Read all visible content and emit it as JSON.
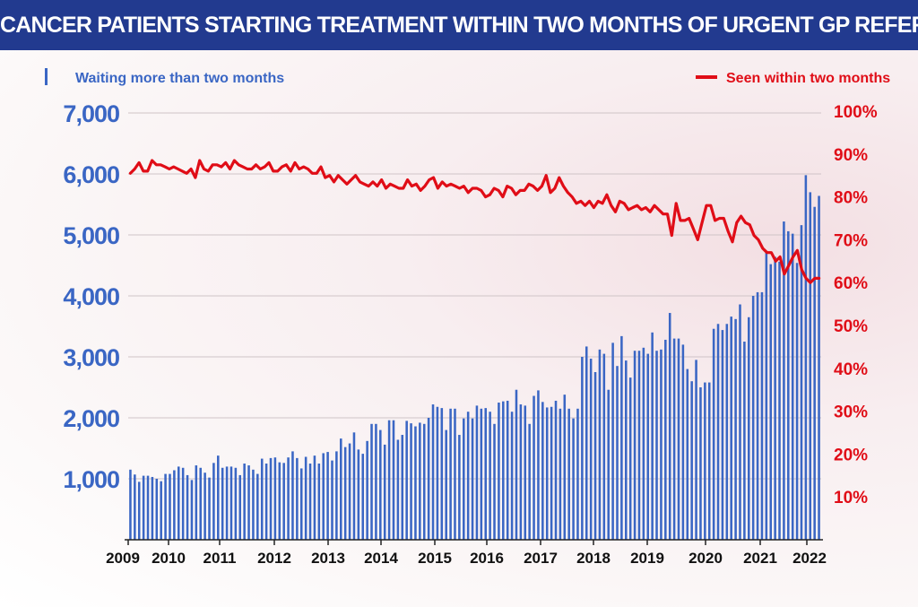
{
  "title": "CANCER PATIENTS STARTING TREATMENT WITHIN TWO MONTHS OF URGENT GP REFERRAL",
  "colors": {
    "title_bg": "#223a8f",
    "bars": "#3a66c4",
    "line": "#e00d17",
    "grid": "#cfc4c7"
  },
  "chart_data": {
    "type": "bar",
    "title": "CANCER PATIENTS STARTING TREATMENT WITHIN TWO MONTHS OF URGENT GP REFERRAL",
    "legend": {
      "bars": "Waiting more than two months",
      "line": "Seen within two months"
    },
    "y_left": {
      "label": "",
      "range": [
        0,
        7000
      ],
      "ticks": [
        "1,000",
        "2,000",
        "3,000",
        "4,000",
        "5,000",
        "6,000",
        "7,000"
      ]
    },
    "y_right": {
      "label": "",
      "range": [
        0,
        100
      ],
      "ticks": [
        "10%",
        "20%",
        "30%",
        "40%",
        "50%",
        "60%",
        "70%",
        "80%",
        "90%",
        "100%"
      ]
    },
    "x_ticks": [
      "2009",
      "2010",
      "2011",
      "2012",
      "2013",
      "2014",
      "2015",
      "2016",
      "2017",
      "2018",
      "2019",
      "2020",
      "2021",
      "2022"
    ],
    "grid": true,
    "series": [
      {
        "name": "Waiting more than two months",
        "type": "bar",
        "axis": "left",
        "values": [
          1150,
          1070,
          950,
          1050,
          1050,
          1030,
          1000,
          960,
          1080,
          1080,
          1140,
          1200,
          1180,
          1060,
          980,
          1220,
          1180,
          1100,
          1020,
          1260,
          1380,
          1180,
          1200,
          1200,
          1180,
          1060,
          1250,
          1220,
          1150,
          1080,
          1330,
          1250,
          1340,
          1350,
          1270,
          1260,
          1350,
          1450,
          1340,
          1170,
          1360,
          1250,
          1380,
          1250,
          1420,
          1440,
          1300,
          1450,
          1660,
          1520,
          1580,
          1760,
          1480,
          1410,
          1620,
          1900,
          1900,
          1800,
          1560,
          1960,
          1960,
          1640,
          1720,
          1950,
          1910,
          1860,
          1920,
          1900,
          2000,
          2220,
          2180,
          2160,
          1800,
          2150,
          2150,
          1720,
          1990,
          2100,
          1990,
          2200,
          2150,
          2160,
          2100,
          1900,
          2250,
          2270,
          2280,
          2100,
          2460,
          2220,
          2200,
          1900,
          2360,
          2450,
          2260,
          2170,
          2180,
          2280,
          2150,
          2380,
          2150,
          1990,
          2150,
          3000,
          3170,
          2970,
          2750,
          3120,
          3050,
          2460,
          3230,
          2850,
          3340,
          2940,
          2660,
          3100,
          3100,
          3150,
          3050,
          3400,
          3100,
          3120,
          3280,
          3720,
          3300,
          3300,
          3200,
          2800,
          2600,
          2950,
          2500,
          2580,
          2580,
          3460,
          3540,
          3440,
          3540,
          3660,
          3620,
          3860,
          3250,
          3650,
          4000,
          4060,
          4060,
          4720,
          4520,
          4640,
          4560,
          5220,
          5060,
          5020,
          4540,
          5160,
          5980,
          5700,
          5460,
          5640
        ]
      },
      {
        "name": "Seen within two months",
        "type": "line",
        "axis": "right",
        "values": [
          85.5,
          86.5,
          88,
          86,
          86,
          88.5,
          87.5,
          87.5,
          87,
          86.5,
          87,
          86.5,
          86,
          85.5,
          86.5,
          84.5,
          88.5,
          86.5,
          86,
          87.5,
          87.5,
          87,
          88,
          86.5,
          88.5,
          87.5,
          87,
          86.5,
          86.5,
          87.5,
          86.5,
          87,
          88,
          86,
          86,
          87,
          87.5,
          86,
          88,
          86.5,
          87,
          86.5,
          85.5,
          85.5,
          87,
          84.5,
          85,
          83.5,
          85,
          84,
          83,
          84,
          85,
          83.5,
          83,
          82.5,
          83.5,
          82.5,
          84,
          82,
          83,
          82.5,
          82,
          82,
          84,
          82.5,
          83,
          81.5,
          82.5,
          84,
          84.5,
          82,
          83.5,
          82.5,
          83,
          82.5,
          82,
          82.5,
          81,
          82,
          82,
          81.5,
          80,
          80.5,
          82,
          81.5,
          80,
          82.5,
          82,
          80.5,
          81.5,
          81.5,
          83,
          82.5,
          81.5,
          82.5,
          85,
          81,
          82,
          84.5,
          82.5,
          81,
          80,
          78.5,
          79,
          78,
          79,
          77.5,
          79,
          78.5,
          80.5,
          78,
          76.5,
          79,
          78.5,
          77,
          77.5,
          78,
          77,
          77.5,
          76.5,
          78,
          77,
          76,
          76,
          71,
          78.5,
          74.5,
          74.5,
          75,
          72.5,
          70,
          74,
          78,
          78,
          74.5,
          75,
          75,
          72,
          69.5,
          74,
          75.5,
          74,
          73.5,
          71,
          70,
          68,
          67,
          67,
          65,
          66,
          62,
          64,
          66,
          67.5,
          63,
          61,
          60,
          61,
          61
        ]
      }
    ]
  }
}
